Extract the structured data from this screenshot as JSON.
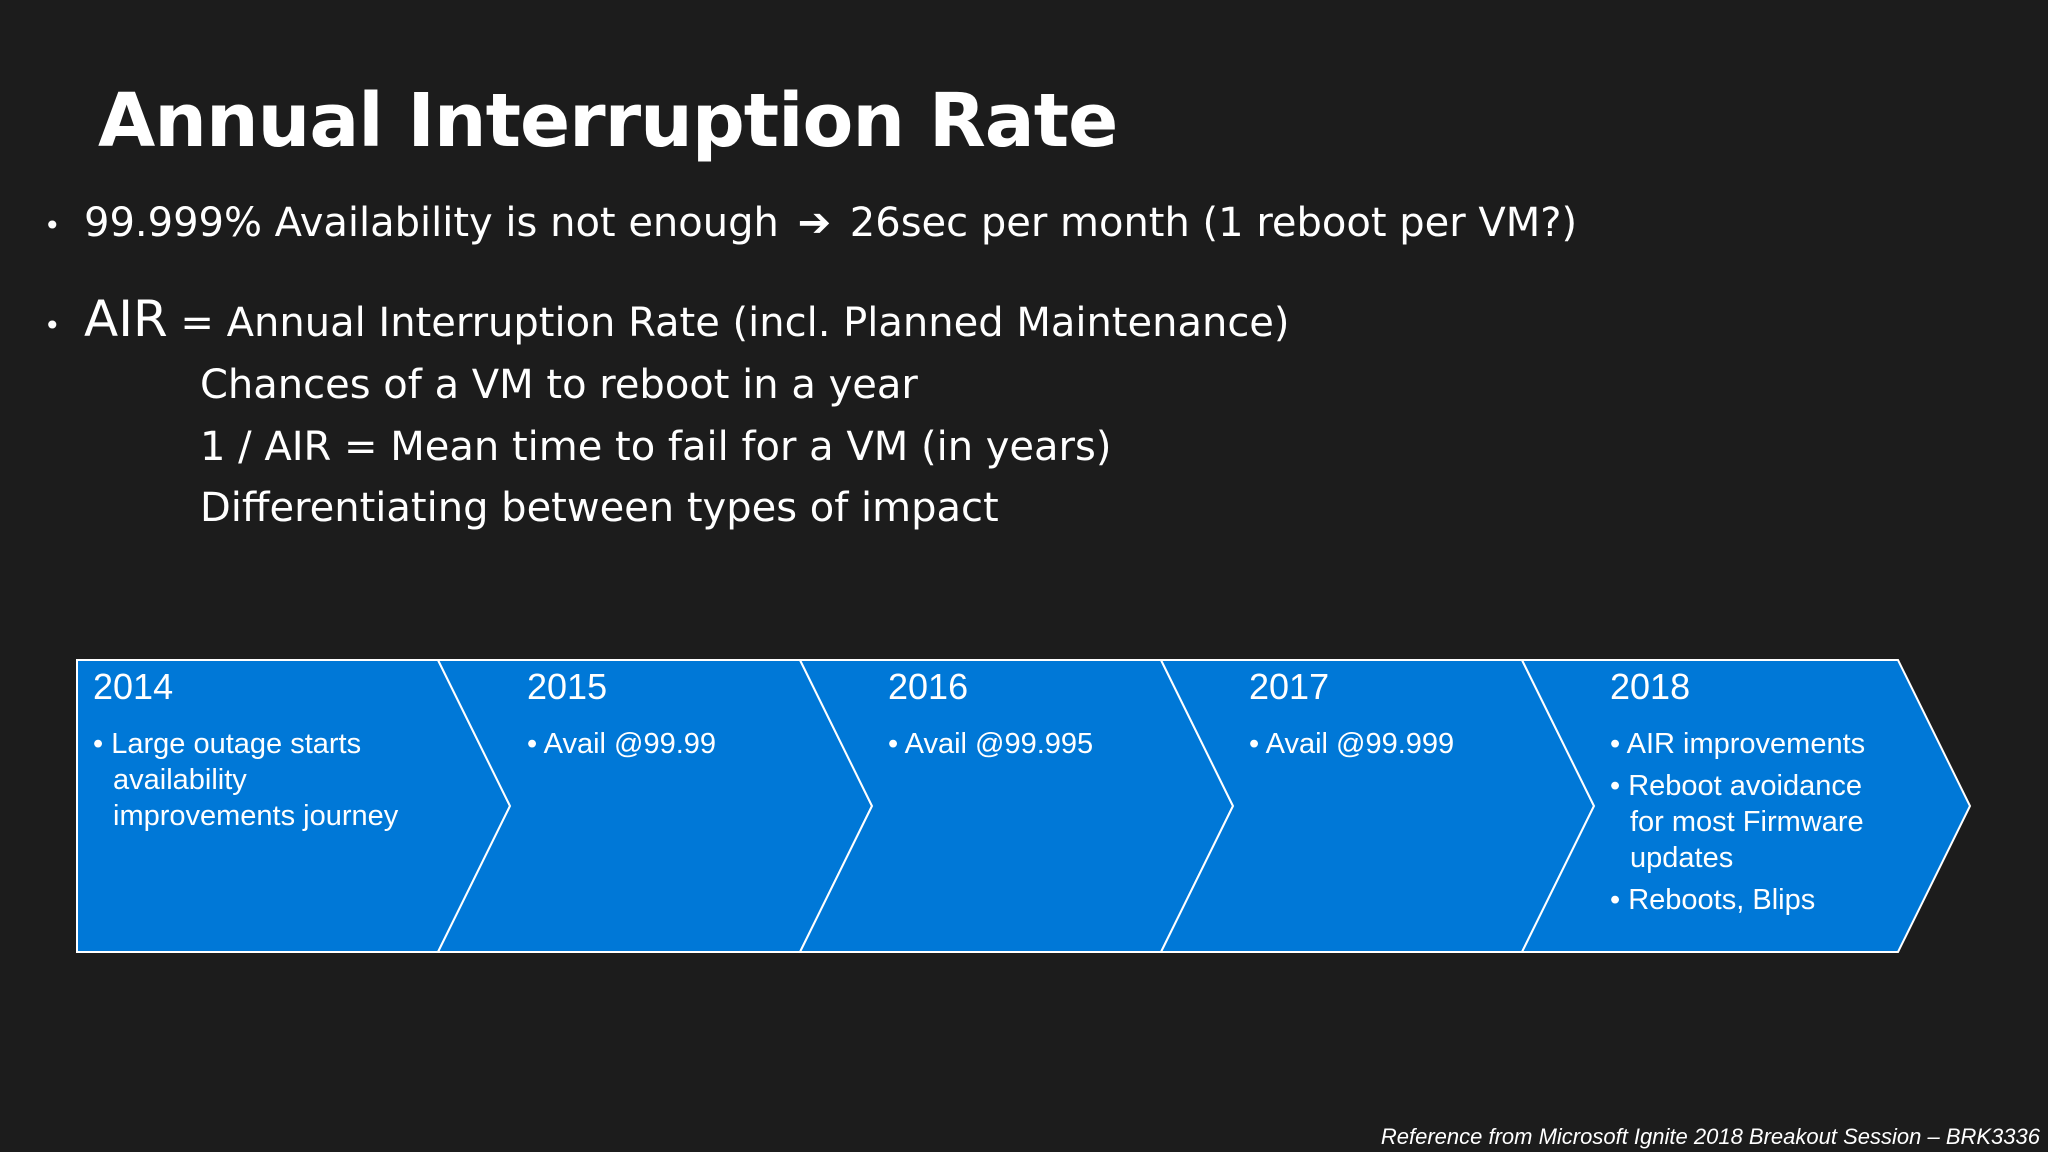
{
  "slide": {
    "title": "Annual Interruption Rate",
    "bullet1": {
      "text_before": "99.999% Availability is not enough",
      "arrow": "➔",
      "text_after": "26sec per month (1 reboot per VM?)"
    },
    "bullet2": {
      "air": "AIR",
      "rest": " = Annual Interruption Rate (incl. Planned Maintenance)"
    },
    "sub_lines": [
      "Chances of a VM to reboot in a year",
      "1 / AIR = Mean time to fail for a VM (in years)",
      "Differentiating between types of impact"
    ],
    "footer": "Reference from Microsoft Ignite 2018 Breakout Session – BRK3336"
  },
  "timeline": {
    "fill_color": "#0078d7",
    "stroke_color": "#ffffff",
    "segments": [
      {
        "year": "2014",
        "bullets": [
          "Large outage starts availability improvements journey"
        ]
      },
      {
        "year": "2015",
        "bullets": [
          "Avail @99.99"
        ]
      },
      {
        "year": "2016",
        "bullets": [
          "Avail @99.995"
        ]
      },
      {
        "year": "2017",
        "bullets": [
          "Avail @99.999"
        ]
      },
      {
        "year": "2018",
        "bullets": [
          "AIR improvements",
          "Reboot avoidance for most Firmware updates",
          "Reboots, Blips"
        ]
      }
    ]
  }
}
